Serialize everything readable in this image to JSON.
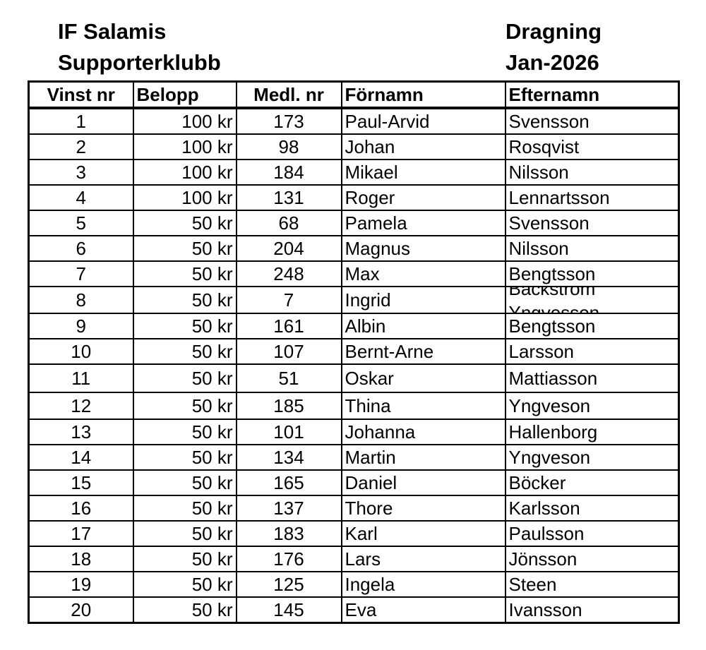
{
  "header": {
    "club_line1": "IF Salamis",
    "club_line2": "Supporterklubb",
    "draw_line1": "Dragning",
    "draw_line2": "Jan-2026"
  },
  "table": {
    "columns": [
      "Vinst nr",
      "Belopp",
      "Medl. nr",
      "Förnamn",
      "Efternamn"
    ],
    "rows": [
      [
        "1",
        "100 kr",
        "173",
        "Paul-Arvid",
        "Svensson"
      ],
      [
        "2",
        "100 kr",
        "98",
        "Johan",
        "Rosqvist"
      ],
      [
        "3",
        "100 kr",
        "184",
        "Mikael",
        "Nilsson"
      ],
      [
        "4",
        "100 kr",
        "131",
        "Roger",
        "Lennartsson"
      ],
      [
        "5",
        "50 kr",
        "68",
        "Pamela",
        "Svensson"
      ],
      [
        "6",
        "50 kr",
        "204",
        "Magnus",
        "Nilsson"
      ],
      [
        "7",
        "50 kr",
        "248",
        "Max",
        "Bengtsson"
      ],
      [
        "8",
        "50 kr",
        "7",
        "Ingrid",
        "Backström Yngvesson"
      ],
      [
        "9",
        "50 kr",
        "161",
        "Albin",
        "Bengtsson"
      ],
      [
        "10",
        "50 kr",
        "107",
        "Bernt-Arne",
        "Larsson"
      ],
      [
        "11",
        "50 kr",
        "51",
        "Oskar",
        "Mattiasson"
      ],
      [
        "12",
        "50 kr",
        "185",
        "Thina",
        "Yngveson"
      ],
      [
        "13",
        "50 kr",
        "101",
        "Johanna",
        "Hallenborg"
      ],
      [
        "14",
        "50 kr",
        "134",
        "Martin",
        "Yngveson"
      ],
      [
        "15",
        "50 kr",
        "165",
        "Daniel",
        "Böcker"
      ],
      [
        "16",
        "50 kr",
        "137",
        "Thore",
        "Karlsson"
      ],
      [
        "17",
        "50 kr",
        "183",
        "Karl",
        "Paulsson"
      ],
      [
        "18",
        "50 kr",
        "176",
        "Lars",
        "Jönsson"
      ],
      [
        "19",
        "50 kr",
        "125",
        "Ingela",
        "Steen"
      ],
      [
        "20",
        "50 kr",
        "145",
        "Eva",
        "Ivansson"
      ]
    ]
  }
}
